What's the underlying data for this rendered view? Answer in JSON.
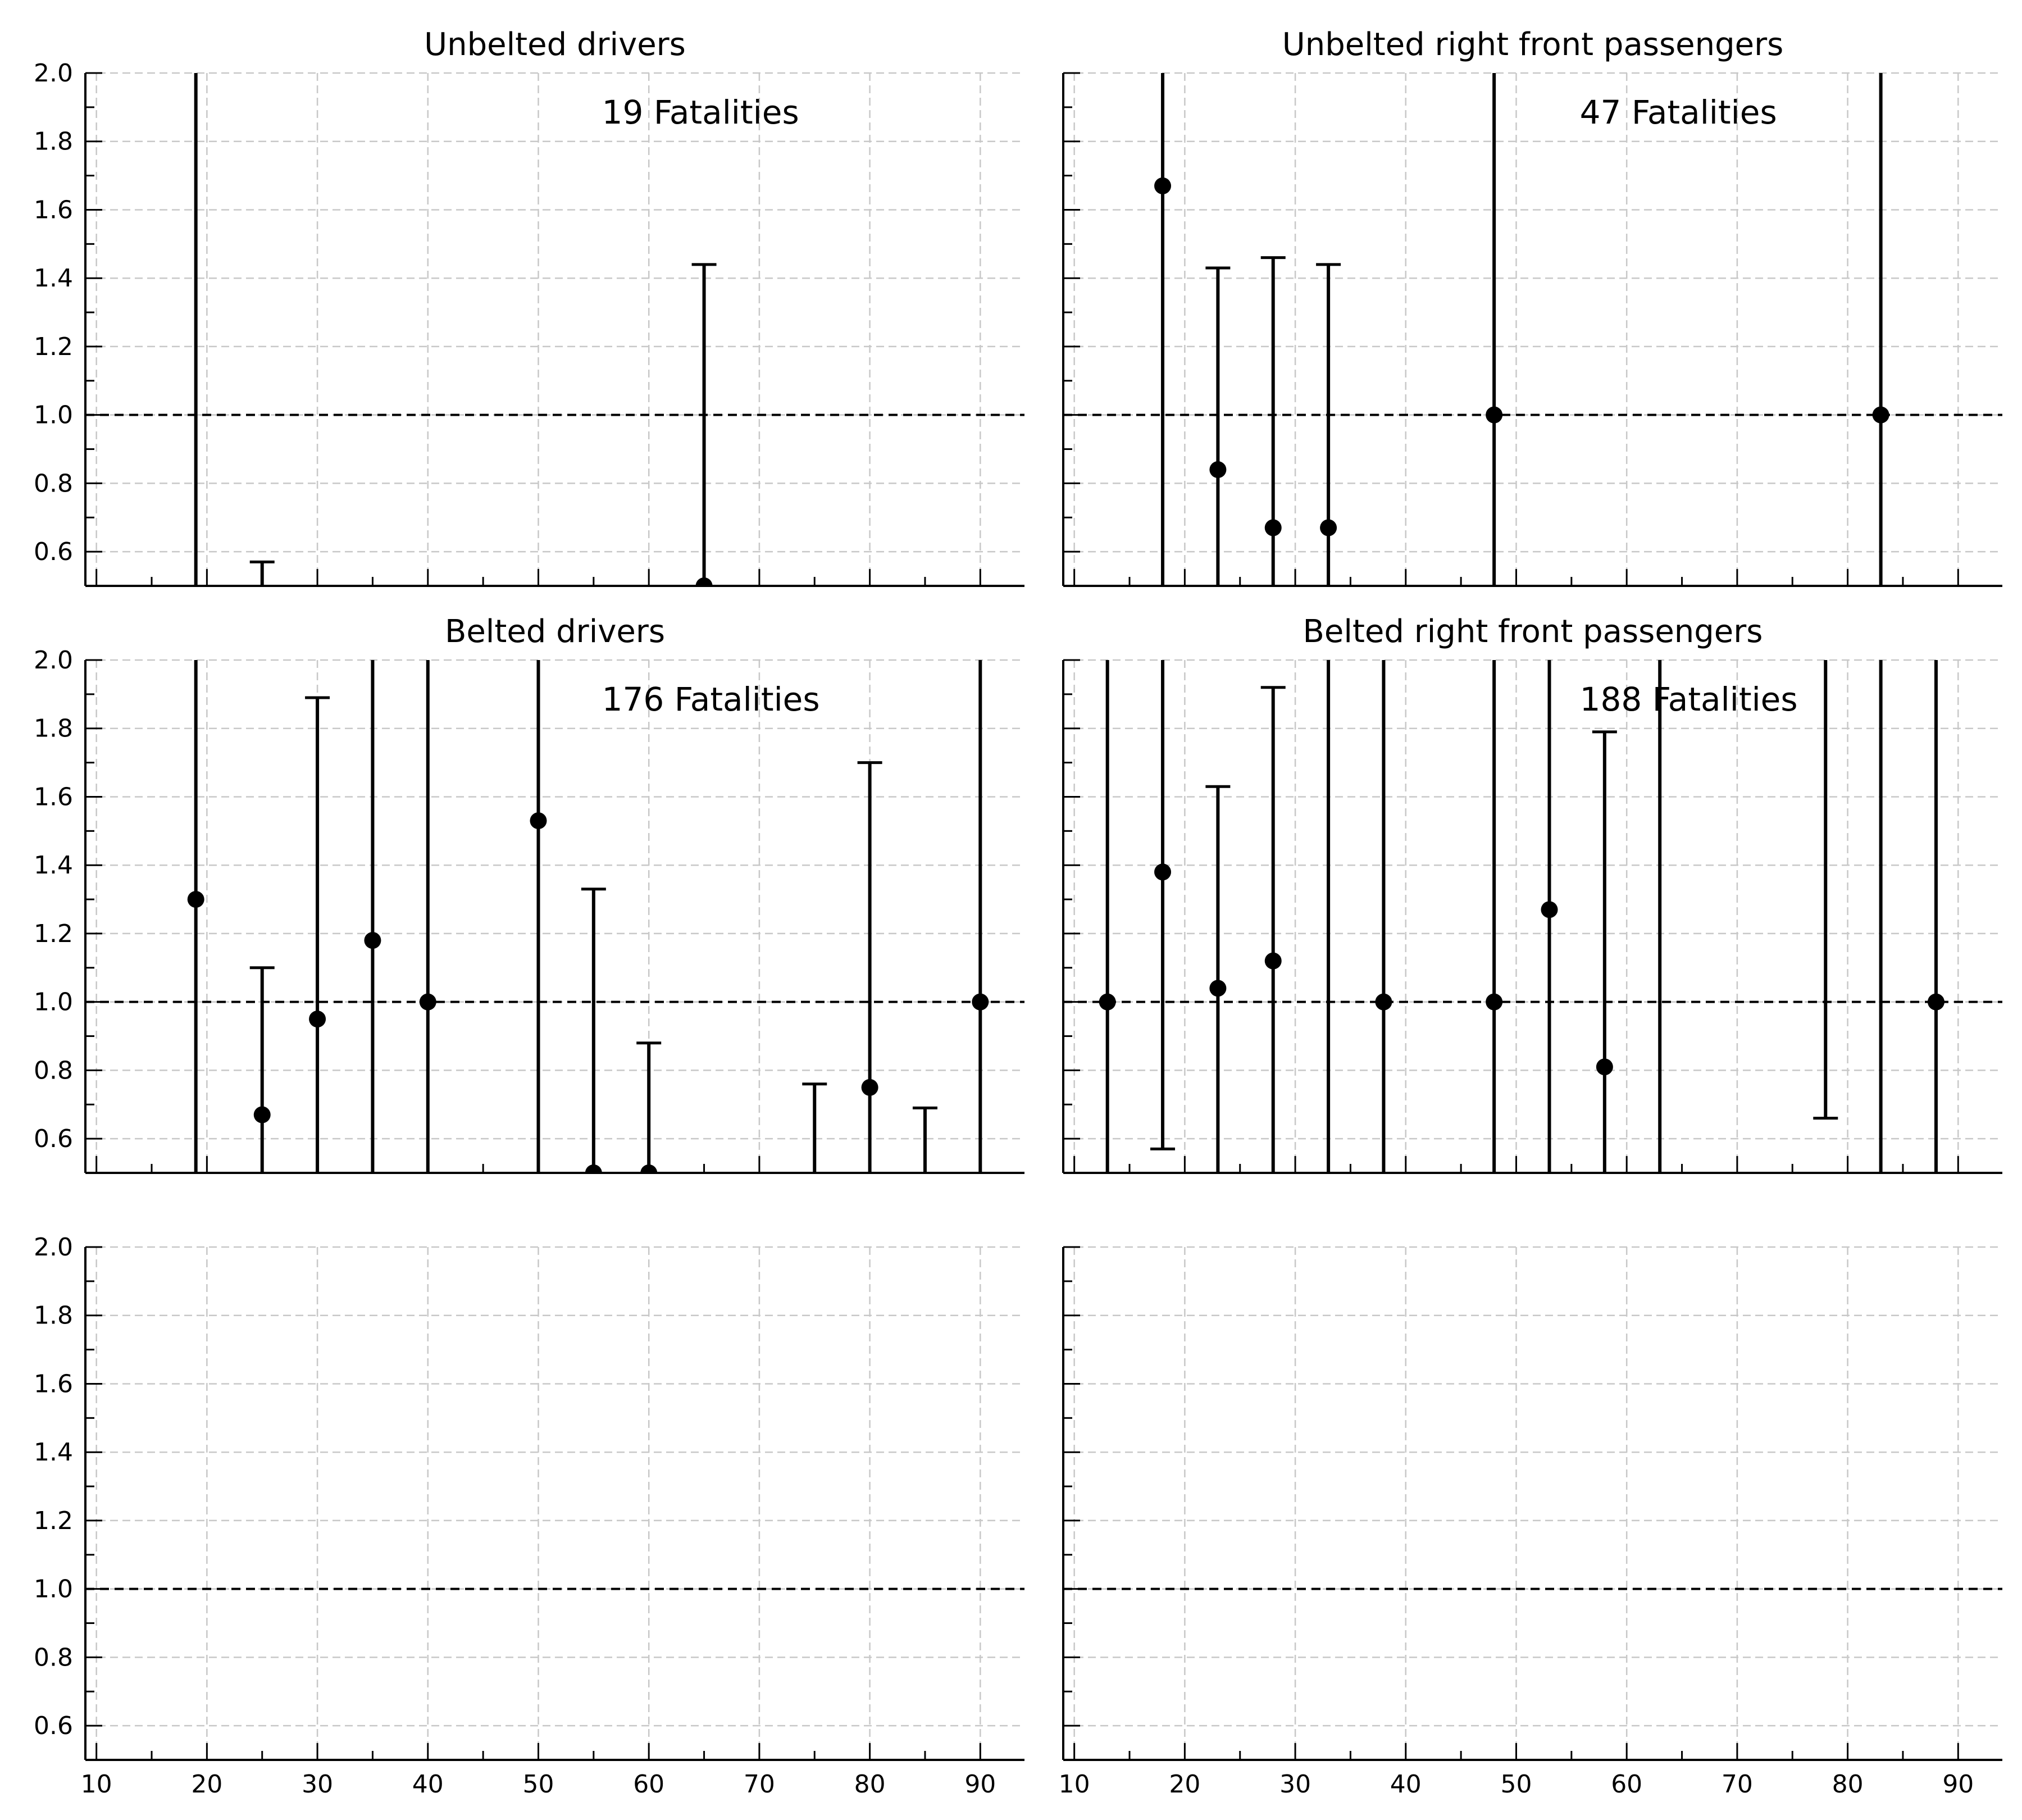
{
  "chart_data": [
    {
      "type": "errorbar",
      "title": "Unbelted drivers",
      "annotation": "19 Fatalities",
      "xlim": [
        9,
        94
      ],
      "ylim": [
        0.5,
        2.0
      ],
      "xticks": [
        "10",
        "20",
        "30",
        "40",
        "50",
        "60",
        "70",
        "80",
        "90"
      ],
      "yticks": [
        "0.6",
        "0.8",
        "1.0",
        "1.2",
        "1.4",
        "1.6",
        "1.8",
        "2.0"
      ],
      "reference_line": 1.0,
      "grid": true,
      "points": [
        {
          "x": 19,
          "y": null,
          "lower": 0.5,
          "upper": 2.0
        },
        {
          "x": 25,
          "y": null,
          "lower": 0.5,
          "upper": 0.57
        },
        {
          "x": 65,
          "y": 0.5,
          "lower": 0.5,
          "upper": 1.44
        }
      ]
    },
    {
      "type": "errorbar",
      "title": "Unbelted right front passengers",
      "annotation": "47 Fatalities",
      "xlim": [
        9,
        94
      ],
      "ylim": [
        0.5,
        2.0
      ],
      "xticks": [
        "10",
        "20",
        "30",
        "40",
        "50",
        "60",
        "70",
        "80",
        "90"
      ],
      "yticks": [
        "0.6",
        "0.8",
        "1.0",
        "1.2",
        "1.4",
        "1.6",
        "1.8",
        "2.0"
      ],
      "reference_line": 1.0,
      "grid": true,
      "points": [
        {
          "x": 18,
          "y": 1.67,
          "lower": 0.5,
          "upper": 2.0
        },
        {
          "x": 23,
          "y": 0.84,
          "lower": 0.5,
          "upper": 1.43
        },
        {
          "x": 28,
          "y": 0.67,
          "lower": 0.5,
          "upper": 1.46
        },
        {
          "x": 33,
          "y": 0.67,
          "lower": 0.5,
          "upper": 1.44
        },
        {
          "x": 48,
          "y": 1.0,
          "lower": 0.5,
          "upper": 2.0
        },
        {
          "x": 83,
          "y": 1.0,
          "lower": 0.5,
          "upper": 2.0
        }
      ]
    },
    {
      "type": "errorbar",
      "title": "Belted drivers",
      "annotation": "176 Fatalities",
      "xlim": [
        9,
        94
      ],
      "ylim": [
        0.5,
        2.0
      ],
      "xticks": [
        "10",
        "20",
        "30",
        "40",
        "50",
        "60",
        "70",
        "80",
        "90"
      ],
      "yticks": [
        "0.6",
        "0.8",
        "1.0",
        "1.2",
        "1.4",
        "1.6",
        "1.8",
        "2.0"
      ],
      "reference_line": 1.0,
      "grid": true,
      "points": [
        {
          "x": 19,
          "y": 1.3,
          "lower": 0.5,
          "upper": 2.0
        },
        {
          "x": 25,
          "y": 0.67,
          "lower": 0.5,
          "upper": 1.1
        },
        {
          "x": 30,
          "y": 0.95,
          "lower": 0.5,
          "upper": 1.89
        },
        {
          "x": 35,
          "y": 1.18,
          "lower": 0.5,
          "upper": 2.0
        },
        {
          "x": 40,
          "y": 1.0,
          "lower": 0.5,
          "upper": 2.0
        },
        {
          "x": 50,
          "y": 1.53,
          "lower": 0.5,
          "upper": 2.0
        },
        {
          "x": 55,
          "y": 0.5,
          "lower": 0.5,
          "upper": 1.33
        },
        {
          "x": 60,
          "y": 0.5,
          "lower": 0.5,
          "upper": 0.88
        },
        {
          "x": 75,
          "y": null,
          "lower": 0.5,
          "upper": 0.76
        },
        {
          "x": 80,
          "y": 0.75,
          "lower": 0.5,
          "upper": 1.7
        },
        {
          "x": 85,
          "y": null,
          "lower": 0.5,
          "upper": 0.69
        },
        {
          "x": 90,
          "y": 1.0,
          "lower": 0.5,
          "upper": 2.0
        }
      ]
    },
    {
      "type": "errorbar",
      "title": "Belted right front passengers",
      "annotation": "188 Fatalities",
      "xlim": [
        9,
        94
      ],
      "ylim": [
        0.5,
        2.0
      ],
      "xticks": [
        "10",
        "20",
        "30",
        "40",
        "50",
        "60",
        "70",
        "80",
        "90"
      ],
      "yticks": [
        "0.6",
        "0.8",
        "1.0",
        "1.2",
        "1.4",
        "1.6",
        "1.8",
        "2.0"
      ],
      "reference_line": 1.0,
      "grid": true,
      "points": [
        {
          "x": 13,
          "y": 1.0,
          "lower": 0.5,
          "upper": 2.0
        },
        {
          "x": 18,
          "y": 1.38,
          "lower": 0.57,
          "upper": 2.0
        },
        {
          "x": 23,
          "y": 1.04,
          "lower": 0.5,
          "upper": 1.63
        },
        {
          "x": 28,
          "y": 1.12,
          "lower": 0.5,
          "upper": 1.92
        },
        {
          "x": 33,
          "y": null,
          "lower": 0.5,
          "upper": 2.0
        },
        {
          "x": 38,
          "y": 1.0,
          "lower": 0.5,
          "upper": 2.0
        },
        {
          "x": 48,
          "y": 1.0,
          "lower": 0.5,
          "upper": 2.0
        },
        {
          "x": 53,
          "y": 1.27,
          "lower": 0.5,
          "upper": 2.0
        },
        {
          "x": 58,
          "y": 0.81,
          "lower": 0.5,
          "upper": 1.79
        },
        {
          "x": 63,
          "y": null,
          "lower": 0.5,
          "upper": 2.0
        },
        {
          "x": 78,
          "y": null,
          "lower": 0.66,
          "upper": 2.0
        },
        {
          "x": 83,
          "y": null,
          "lower": 0.5,
          "upper": 2.0
        },
        {
          "x": 88,
          "y": 1.0,
          "lower": 0.5,
          "upper": 2.0
        }
      ]
    },
    {
      "type": "errorbar",
      "title": "",
      "annotation": "",
      "xlim": [
        9,
        94
      ],
      "ylim": [
        0.5,
        2.0
      ],
      "xticks": [
        "10",
        "20",
        "30",
        "40",
        "50",
        "60",
        "70",
        "80",
        "90"
      ],
      "yticks": [
        "0.6",
        "0.8",
        "1.0",
        "1.2",
        "1.4",
        "1.6",
        "1.8",
        "2.0"
      ],
      "reference_line": 1.0,
      "grid": true,
      "points": []
    },
    {
      "type": "errorbar",
      "title": "",
      "annotation": "",
      "xlim": [
        9,
        94
      ],
      "ylim": [
        0.5,
        2.0
      ],
      "xticks": [
        "10",
        "20",
        "30",
        "40",
        "50",
        "60",
        "70",
        "80",
        "90"
      ],
      "yticks": [],
      "reference_line": 1.0,
      "grid": true,
      "points": []
    }
  ]
}
